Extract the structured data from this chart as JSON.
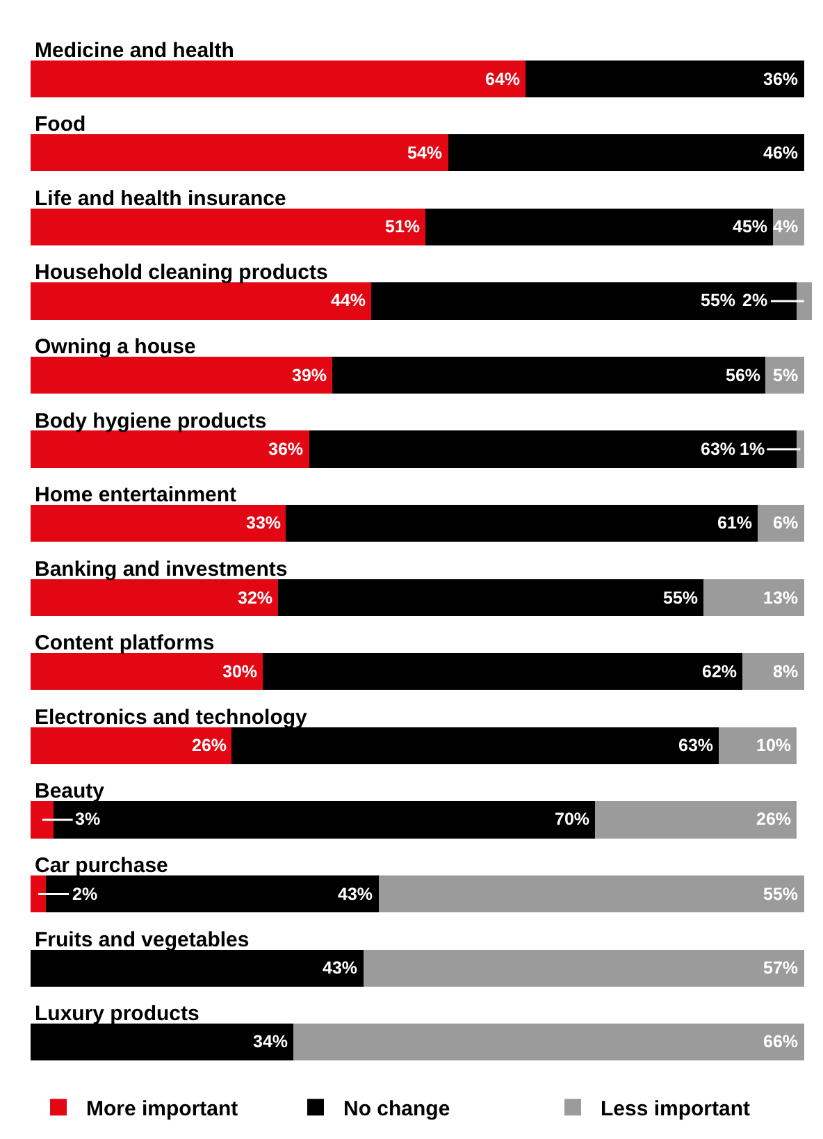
{
  "chart_data": {
    "type": "bar",
    "orientation": "horizontal",
    "stacked": true,
    "xlim": [
      0,
      101
    ],
    "tick_labels": "y",
    "grid": false,
    "legend": "bottom",
    "categories": [
      "Medicine and health",
      "Food",
      "Life and health insurance",
      "Household cleaning products",
      "Owning a house",
      "Body hygiene products",
      "Home entertainment",
      "Banking and investments",
      "Content platforms",
      "Electronics and technology",
      "Beauty",
      "Car purchase",
      "Fruits and vegetables",
      "Luxury products"
    ],
    "series": [
      {
        "name": "More important",
        "color": "#e30613",
        "values": [
          64,
          54,
          51,
          44,
          39,
          36,
          33,
          32,
          30,
          26,
          3,
          2,
          null,
          null
        ],
        "value_labels": [
          "64%",
          "54%",
          "51%",
          "44%",
          "39%",
          "36%",
          "33%",
          "32%",
          "30%",
          "26%",
          "3%",
          "2%",
          null,
          null
        ]
      },
      {
        "name": "No change",
        "color": "#000000",
        "values": [
          36,
          46,
          45,
          55,
          56,
          63,
          61,
          55,
          62,
          63,
          70,
          43,
          43,
          34
        ],
        "value_labels": [
          "36%",
          "46%",
          "45%",
          "55%",
          "56%",
          "63%",
          "61%",
          "55%",
          "62%",
          "63%",
          "70%",
          "43%",
          "43%",
          "34%"
        ]
      },
      {
        "name": "Less important",
        "color": "#9b9b9b",
        "values": [
          null,
          null,
          4,
          2,
          5,
          1,
          6,
          13,
          8,
          10,
          26,
          55,
          57,
          66
        ],
        "value_labels": [
          null,
          null,
          "4%",
          "2%",
          "5%",
          "1%",
          "6%",
          "13%",
          "8%",
          "10%",
          "26%",
          "55%",
          "57%",
          "66%"
        ]
      }
    ]
  }
}
